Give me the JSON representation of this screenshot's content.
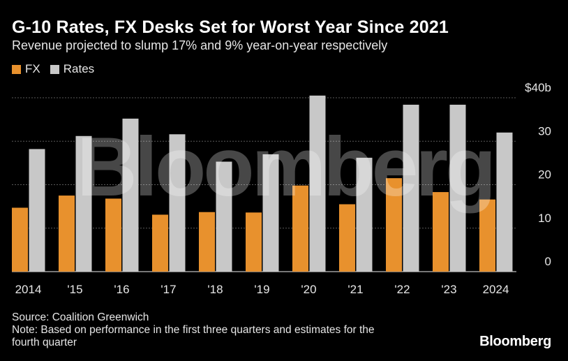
{
  "header": {
    "title": "G-10 Rates, FX Desks Set for Worst Year Since 2021",
    "subtitle": "Revenue projected to slump 17% and 9% year-on-year respectively"
  },
  "legend": [
    {
      "label": "FX",
      "color": "#e8912d"
    },
    {
      "label": "Rates",
      "color": "#c8c8c8"
    }
  ],
  "chart_data": {
    "type": "bar",
    "title": "G-10 Rates, FX Desks Set for Worst Year Since 2021",
    "subtitle": "Revenue projected to slump 17% and 9% year-on-year respectively",
    "categories": [
      "2014",
      "'15",
      "'16",
      "'17",
      "'18",
      "'19",
      "'20",
      "'21",
      "'22",
      "'23",
      "2024"
    ],
    "series": [
      {
        "name": "FX",
        "color": "#e8912d",
        "values": [
          14.7,
          17.5,
          16.8,
          13.1,
          13.7,
          13.6,
          19.8,
          15.5,
          21.5,
          18.3,
          16.6
        ]
      },
      {
        "name": "Rates",
        "color": "#c8c8c8",
        "values": [
          28.2,
          31.2,
          35.2,
          31.6,
          25.3,
          27.0,
          40.5,
          26.2,
          38.4,
          38.4,
          32.0
        ]
      }
    ],
    "yticks": [
      0,
      10,
      20,
      30,
      40
    ],
    "ytick_labels": [
      "0",
      "10",
      "20",
      "30",
      "$40b"
    ],
    "ylim": [
      0,
      40
    ],
    "xlabel": "",
    "ylabel": "",
    "grid": true,
    "legend_position": "top-left"
  },
  "footer": {
    "source": "Source: Coalition Greenwich",
    "note_line1": "Note: Based on performance in the first three quarters and estimates for the",
    "note_line2": "fourth quarter"
  },
  "brand": "Bloomberg",
  "watermark": "Bloomberg"
}
